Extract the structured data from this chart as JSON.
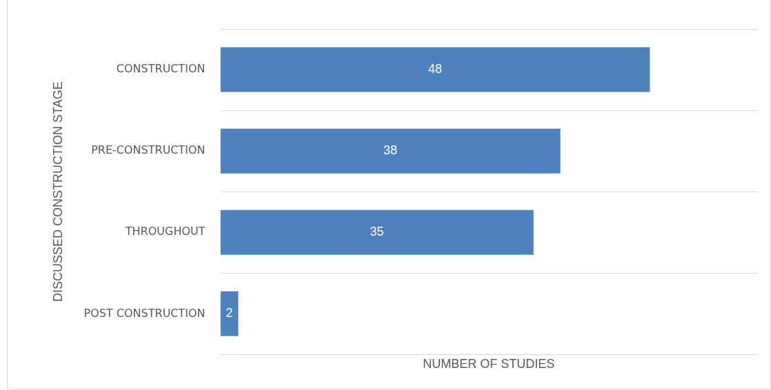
{
  "chart_data": {
    "type": "bar",
    "orientation": "horizontal",
    "categories": [
      "CONSTRUCTION",
      "PRE-CONSTRUCTION",
      "THROUGHOUT",
      "POST CONSTRUCTION"
    ],
    "series": [
      {
        "color": "#4f81bd",
        "values": [
          48,
          38,
          35,
          2
        ]
      }
    ],
    "xlabel": "NUMBER OF STUDIES",
    "ylabel": "DISCUSSED CONSTRUCTION STAGE",
    "xlim": [
      0,
      60
    ],
    "data_labels": true,
    "grid": "y",
    "legend": false,
    "tick_labels": "y"
  }
}
